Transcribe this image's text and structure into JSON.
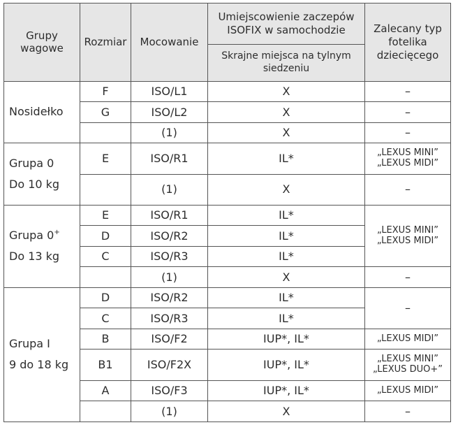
{
  "headers": {
    "groups": "Grupy wagowe",
    "size": "Rozmiar",
    "mount": "Mocowanie",
    "location": "Umiejscowienie zaczepów ISOFIX w samochodzie",
    "location_sub": "Skrajne miejsca na tylnym siedzeniu",
    "recommended": "Zalecany typ fotelika dziecięcego"
  },
  "groups": {
    "nosidelko": "Nosidełko",
    "g0_name": "Grupa 0",
    "g0_weight": "Do 10 kg",
    "g0p_name": "Grupa 0",
    "g0p_sup": "+",
    "g0p_weight": "Do 13 kg",
    "g1_name": "Grupa I",
    "g1_weight": "9 do 18 kg"
  },
  "rows": [
    {
      "size": "F",
      "mount": "ISO/L1",
      "loc": "X",
      "rec": "–"
    },
    {
      "size": "G",
      "mount": "ISO/L2",
      "loc": "X",
      "rec": "–"
    },
    {
      "size": "",
      "mount": "(1)",
      "loc": "X",
      "rec": "–"
    },
    {
      "size": "E",
      "mount": "ISO/R1",
      "loc": "IL*",
      "rec1": "„LEXUS MINI”",
      "rec2": "„LEXUS MIDI”"
    },
    {
      "size": "",
      "mount": "(1)",
      "loc": "X",
      "rec": "–"
    },
    {
      "size": "E",
      "mount": "ISO/R1",
      "loc": "IL*",
      "rec1": "„LEXUS MINI”",
      "rec2": "„LEXUS MIDI”"
    },
    {
      "size": "D",
      "mount": "ISO/R2",
      "loc": "IL*"
    },
    {
      "size": "C",
      "mount": "ISO/R3",
      "loc": "IL*"
    },
    {
      "size": "",
      "mount": "(1)",
      "loc": "X",
      "rec": "–"
    },
    {
      "size": "D",
      "mount": "ISO/R2",
      "loc": "IL*",
      "rec": "–"
    },
    {
      "size": "C",
      "mount": "ISO/R3",
      "loc": "IL*"
    },
    {
      "size": "B",
      "mount": "ISO/F2",
      "loc": "IUP*, IL*",
      "rec": "„LEXUS MIDI”"
    },
    {
      "size": "B1",
      "mount": "ISO/F2X",
      "loc": "IUP*, IL*",
      "rec1": "„LEXUS MINI”",
      "rec2": "„LEXUS DUO+”"
    },
    {
      "size": "A",
      "mount": "ISO/F3",
      "loc": "IUP*, IL*",
      "rec": "„LEXUS MIDI”"
    },
    {
      "size": "",
      "mount": "(1)",
      "loc": "X",
      "rec": "–"
    }
  ]
}
